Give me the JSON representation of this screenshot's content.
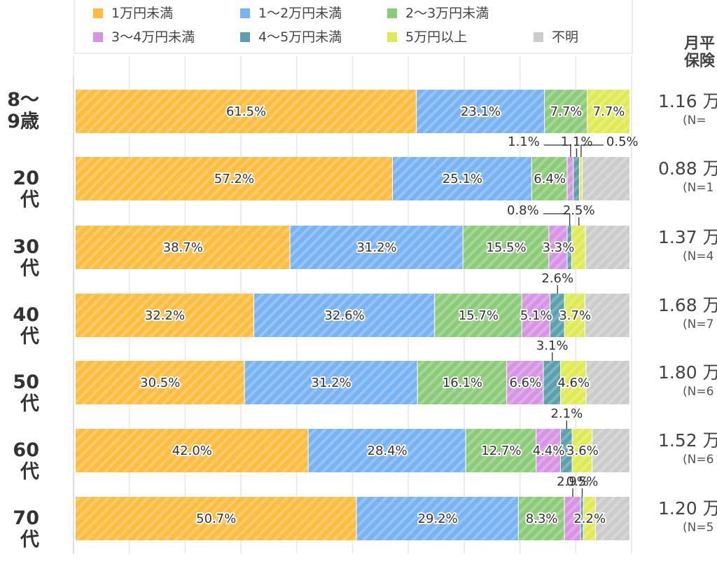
{
  "header_label": [
    "月平",
    "保険"
  ],
  "chart_data": {
    "type": "bar",
    "orientation": "horizontal",
    "stacked": true,
    "unit": "%",
    "legend_position": "top",
    "series": [
      {
        "name": "1万円未満",
        "color": "#fdbd3f",
        "values": [
          61.5,
          57.2,
          38.7,
          32.2,
          30.5,
          42.0,
          50.7
        ]
      },
      {
        "name": "1〜2万円未満",
        "color": "#78b3f3",
        "values": [
          23.1,
          25.1,
          31.2,
          32.6,
          31.2,
          28.4,
          29.2
        ]
      },
      {
        "name": "2〜3万円未満",
        "color": "#8ccc78",
        "values": [
          7.7,
          6.4,
          15.5,
          15.7,
          16.1,
          12.7,
          8.3
        ]
      },
      {
        "name": "3〜4万円未満",
        "color": "#d894e4",
        "values": [
          0,
          1.1,
          3.3,
          5.1,
          6.6,
          4.4,
          2.9
        ]
      },
      {
        "name": "4〜5万円未満",
        "color": "#58a1ad",
        "values": [
          0,
          1.1,
          0.8,
          2.6,
          3.1,
          2.1,
          0.5
        ]
      },
      {
        "name": "5万円以上",
        "color": "#dfeb52",
        "values": [
          7.7,
          0.5,
          2.5,
          3.7,
          4.6,
          3.6,
          2.2
        ]
      },
      {
        "name": "不明",
        "color": "#cccccc",
        "values": [
          0,
          8.6,
          8.0,
          8.1,
          7.9,
          6.8,
          6.2
        ]
      }
    ],
    "rows": [
      {
        "label": [
          "8〜",
          "9歳"
        ],
        "avg": "1.16 万",
        "n": "(N="
      },
      {
        "label": [
          "20代"
        ],
        "avg": "0.88 万",
        "n": "(N=1"
      },
      {
        "label": [
          "30代"
        ],
        "avg": "1.37 万",
        "n": "(N=4"
      },
      {
        "label": [
          "40代"
        ],
        "avg": "1.68 万",
        "n": "(N=7"
      },
      {
        "label": [
          "50代"
        ],
        "avg": "1.80 万",
        "n": "(N=6"
      },
      {
        "label": [
          "60代"
        ],
        "avg": "1.52 万",
        "n": "(N=6"
      },
      {
        "label": [
          "70代"
        ],
        "avg": "1.20 万",
        "n": "(N=5"
      }
    ],
    "data_labels": [
      [
        [
          "61.5%",
          0,
          "in"
        ],
        [
          "23.1%",
          1,
          "in"
        ],
        [
          "7.7%",
          2,
          "in"
        ],
        [
          "7.7%",
          5,
          "in"
        ]
      ],
      [
        [
          "57.2%",
          0,
          "in"
        ],
        [
          "25.1%",
          1,
          "in"
        ],
        [
          "6.4%",
          2,
          "in"
        ],
        [
          "1.1%",
          3,
          "out-left"
        ],
        [
          "1.1%",
          4,
          "out"
        ],
        [
          "0.5%",
          5,
          "out-right"
        ]
      ],
      [
        [
          "38.7%",
          0,
          "in"
        ],
        [
          "31.2%",
          1,
          "in"
        ],
        [
          "15.5%",
          2,
          "in"
        ],
        [
          "3.3%",
          3,
          "in"
        ],
        [
          "0.8%",
          4,
          "out-left"
        ],
        [
          "2.5%",
          5,
          "out"
        ]
      ],
      [
        [
          "32.2%",
          0,
          "in"
        ],
        [
          "32.6%",
          1,
          "in"
        ],
        [
          "15.7%",
          2,
          "in"
        ],
        [
          "5.1%",
          3,
          "in"
        ],
        [
          "2.6%",
          4,
          "out"
        ],
        [
          "3.7%",
          5,
          "in"
        ]
      ],
      [
        [
          "30.5%",
          0,
          "in"
        ],
        [
          "31.2%",
          1,
          "in"
        ],
        [
          "16.1%",
          2,
          "in"
        ],
        [
          "6.6%",
          3,
          "in"
        ],
        [
          "3.1%",
          4,
          "out"
        ],
        [
          "4.6%",
          5,
          "in"
        ]
      ],
      [
        [
          "42.0%",
          0,
          "in"
        ],
        [
          "28.4%",
          1,
          "in"
        ],
        [
          "12.7%",
          2,
          "in"
        ],
        [
          "4.4%",
          3,
          "in"
        ],
        [
          "2.1%",
          4,
          "out"
        ],
        [
          "3.6%",
          5,
          "in"
        ]
      ],
      [
        [
          "50.7%",
          0,
          "in"
        ],
        [
          "29.2%",
          1,
          "in"
        ],
        [
          "8.3%",
          2,
          "in"
        ],
        [
          "2.9%",
          3,
          "out"
        ],
        [
          "0.5%",
          4,
          "out"
        ],
        [
          "2.2%",
          5,
          "in"
        ]
      ]
    ],
    "xlim": [
      0,
      100
    ],
    "grid": true
  }
}
